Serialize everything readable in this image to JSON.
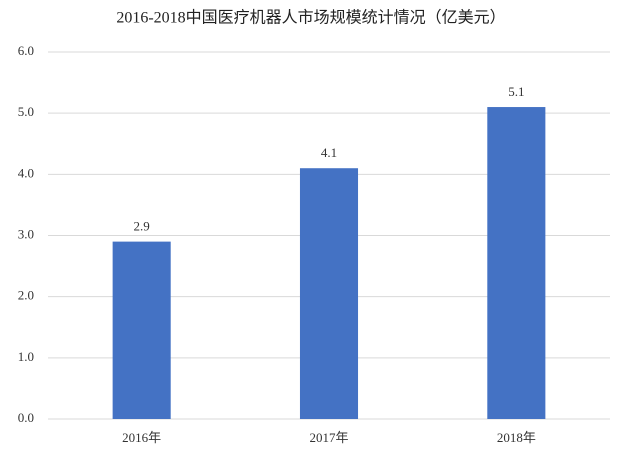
{
  "chart_data": {
    "type": "bar",
    "title": "2016-2018中国医疗机器人市场规模统计情况（亿美元）",
    "categories": [
      "2016年",
      "2017年",
      "2018年"
    ],
    "values": [
      2.9,
      4.1,
      5.1
    ],
    "color": "#4472c4",
    "ylim": [
      0,
      6
    ],
    "yticks": [
      {
        "value": 0,
        "label": "0.0"
      },
      {
        "value": 1,
        "label": "1.0"
      },
      {
        "value": 2,
        "label": "2.0"
      },
      {
        "value": 3,
        "label": "3.0"
      },
      {
        "value": 4,
        "label": "4.0"
      },
      {
        "value": 5,
        "label": "5.0"
      },
      {
        "value": 6,
        "label": "6.0"
      }
    ],
    "grid": true
  }
}
